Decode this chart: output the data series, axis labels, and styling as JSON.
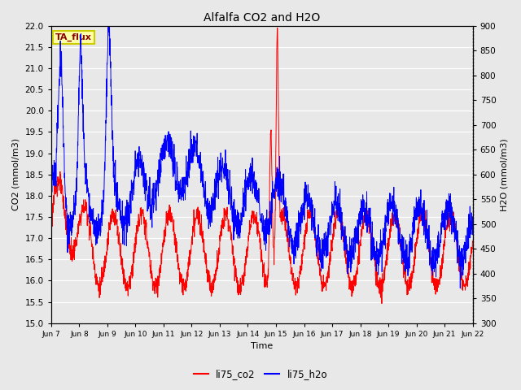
{
  "title": "Alfalfa CO2 and H2O",
  "xlabel": "Time",
  "ylabel_left": "CO2 (mmol/m3)",
  "ylabel_right": "H2O (mmol/m3)",
  "ylim_left": [
    15.0,
    22.0
  ],
  "ylim_right": [
    300,
    900
  ],
  "xtick_labels": [
    "Jun 7",
    "Jun 8",
    "Jun 9",
    "Jun 10",
    "Jun 11",
    "Jun 12",
    "Jun 13",
    "Jun 14",
    "Jun 15",
    "Jun 16",
    "Jun 17",
    "Jun 18",
    "Jun 19",
    "Jun 20",
    "Jun 21",
    "Jun 22"
  ],
  "legend_labels": [
    "li75_co2",
    "li75_h2o"
  ],
  "annotation_text": "TA_flux",
  "annotation_color": "#8B0000",
  "annotation_bg": "#FFFFAA",
  "annotation_border": "#CCCC00",
  "line_co2_color": "#FF0000",
  "line_h2o_color": "#0000FF",
  "bg_color": "#E8E8E8",
  "yticks_left": [
    15.0,
    15.5,
    16.0,
    16.5,
    17.0,
    17.5,
    18.0,
    18.5,
    19.0,
    19.5,
    20.0,
    20.5,
    21.0,
    21.5,
    22.0
  ],
  "yticks_right": [
    300,
    350,
    400,
    450,
    500,
    550,
    600,
    650,
    700,
    750,
    800,
    850,
    900
  ]
}
